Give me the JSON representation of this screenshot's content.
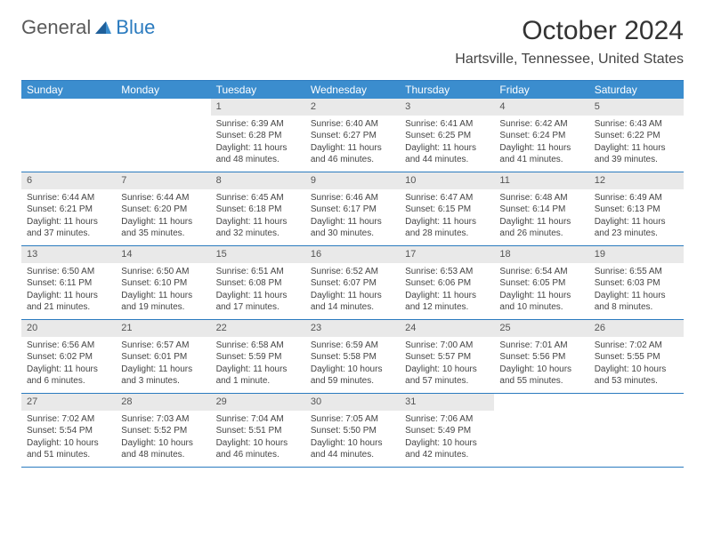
{
  "logo": {
    "general": "General",
    "blue": "Blue"
  },
  "title": "October 2024",
  "location": "Hartsville, Tennessee, United States",
  "colors": {
    "header_bg": "#3b8dce",
    "border": "#2b7bbf",
    "daynum_bg": "#e9e9e9",
    "text": "#333333"
  },
  "dow": [
    "Sunday",
    "Monday",
    "Tuesday",
    "Wednesday",
    "Thursday",
    "Friday",
    "Saturday"
  ],
  "weeks": [
    [
      {
        "n": "",
        "empty": true
      },
      {
        "n": "",
        "empty": true
      },
      {
        "n": "1",
        "sr": "Sunrise: 6:39 AM",
        "ss": "Sunset: 6:28 PM",
        "dl1": "Daylight: 11 hours",
        "dl2": "and 48 minutes."
      },
      {
        "n": "2",
        "sr": "Sunrise: 6:40 AM",
        "ss": "Sunset: 6:27 PM",
        "dl1": "Daylight: 11 hours",
        "dl2": "and 46 minutes."
      },
      {
        "n": "3",
        "sr": "Sunrise: 6:41 AM",
        "ss": "Sunset: 6:25 PM",
        "dl1": "Daylight: 11 hours",
        "dl2": "and 44 minutes."
      },
      {
        "n": "4",
        "sr": "Sunrise: 6:42 AM",
        "ss": "Sunset: 6:24 PM",
        "dl1": "Daylight: 11 hours",
        "dl2": "and 41 minutes."
      },
      {
        "n": "5",
        "sr": "Sunrise: 6:43 AM",
        "ss": "Sunset: 6:22 PM",
        "dl1": "Daylight: 11 hours",
        "dl2": "and 39 minutes."
      }
    ],
    [
      {
        "n": "6",
        "sr": "Sunrise: 6:44 AM",
        "ss": "Sunset: 6:21 PM",
        "dl1": "Daylight: 11 hours",
        "dl2": "and 37 minutes."
      },
      {
        "n": "7",
        "sr": "Sunrise: 6:44 AM",
        "ss": "Sunset: 6:20 PM",
        "dl1": "Daylight: 11 hours",
        "dl2": "and 35 minutes."
      },
      {
        "n": "8",
        "sr": "Sunrise: 6:45 AM",
        "ss": "Sunset: 6:18 PM",
        "dl1": "Daylight: 11 hours",
        "dl2": "and 32 minutes."
      },
      {
        "n": "9",
        "sr": "Sunrise: 6:46 AM",
        "ss": "Sunset: 6:17 PM",
        "dl1": "Daylight: 11 hours",
        "dl2": "and 30 minutes."
      },
      {
        "n": "10",
        "sr": "Sunrise: 6:47 AM",
        "ss": "Sunset: 6:15 PM",
        "dl1": "Daylight: 11 hours",
        "dl2": "and 28 minutes."
      },
      {
        "n": "11",
        "sr": "Sunrise: 6:48 AM",
        "ss": "Sunset: 6:14 PM",
        "dl1": "Daylight: 11 hours",
        "dl2": "and 26 minutes."
      },
      {
        "n": "12",
        "sr": "Sunrise: 6:49 AM",
        "ss": "Sunset: 6:13 PM",
        "dl1": "Daylight: 11 hours",
        "dl2": "and 23 minutes."
      }
    ],
    [
      {
        "n": "13",
        "sr": "Sunrise: 6:50 AM",
        "ss": "Sunset: 6:11 PM",
        "dl1": "Daylight: 11 hours",
        "dl2": "and 21 minutes."
      },
      {
        "n": "14",
        "sr": "Sunrise: 6:50 AM",
        "ss": "Sunset: 6:10 PM",
        "dl1": "Daylight: 11 hours",
        "dl2": "and 19 minutes."
      },
      {
        "n": "15",
        "sr": "Sunrise: 6:51 AM",
        "ss": "Sunset: 6:08 PM",
        "dl1": "Daylight: 11 hours",
        "dl2": "and 17 minutes."
      },
      {
        "n": "16",
        "sr": "Sunrise: 6:52 AM",
        "ss": "Sunset: 6:07 PM",
        "dl1": "Daylight: 11 hours",
        "dl2": "and 14 minutes."
      },
      {
        "n": "17",
        "sr": "Sunrise: 6:53 AM",
        "ss": "Sunset: 6:06 PM",
        "dl1": "Daylight: 11 hours",
        "dl2": "and 12 minutes."
      },
      {
        "n": "18",
        "sr": "Sunrise: 6:54 AM",
        "ss": "Sunset: 6:05 PM",
        "dl1": "Daylight: 11 hours",
        "dl2": "and 10 minutes."
      },
      {
        "n": "19",
        "sr": "Sunrise: 6:55 AM",
        "ss": "Sunset: 6:03 PM",
        "dl1": "Daylight: 11 hours",
        "dl2": "and 8 minutes."
      }
    ],
    [
      {
        "n": "20",
        "sr": "Sunrise: 6:56 AM",
        "ss": "Sunset: 6:02 PM",
        "dl1": "Daylight: 11 hours",
        "dl2": "and 6 minutes."
      },
      {
        "n": "21",
        "sr": "Sunrise: 6:57 AM",
        "ss": "Sunset: 6:01 PM",
        "dl1": "Daylight: 11 hours",
        "dl2": "and 3 minutes."
      },
      {
        "n": "22",
        "sr": "Sunrise: 6:58 AM",
        "ss": "Sunset: 5:59 PM",
        "dl1": "Daylight: 11 hours",
        "dl2": "and 1 minute."
      },
      {
        "n": "23",
        "sr": "Sunrise: 6:59 AM",
        "ss": "Sunset: 5:58 PM",
        "dl1": "Daylight: 10 hours",
        "dl2": "and 59 minutes."
      },
      {
        "n": "24",
        "sr": "Sunrise: 7:00 AM",
        "ss": "Sunset: 5:57 PM",
        "dl1": "Daylight: 10 hours",
        "dl2": "and 57 minutes."
      },
      {
        "n": "25",
        "sr": "Sunrise: 7:01 AM",
        "ss": "Sunset: 5:56 PM",
        "dl1": "Daylight: 10 hours",
        "dl2": "and 55 minutes."
      },
      {
        "n": "26",
        "sr": "Sunrise: 7:02 AM",
        "ss": "Sunset: 5:55 PM",
        "dl1": "Daylight: 10 hours",
        "dl2": "and 53 minutes."
      }
    ],
    [
      {
        "n": "27",
        "sr": "Sunrise: 7:02 AM",
        "ss": "Sunset: 5:54 PM",
        "dl1": "Daylight: 10 hours",
        "dl2": "and 51 minutes."
      },
      {
        "n": "28",
        "sr": "Sunrise: 7:03 AM",
        "ss": "Sunset: 5:52 PM",
        "dl1": "Daylight: 10 hours",
        "dl2": "and 48 minutes."
      },
      {
        "n": "29",
        "sr": "Sunrise: 7:04 AM",
        "ss": "Sunset: 5:51 PM",
        "dl1": "Daylight: 10 hours",
        "dl2": "and 46 minutes."
      },
      {
        "n": "30",
        "sr": "Sunrise: 7:05 AM",
        "ss": "Sunset: 5:50 PM",
        "dl1": "Daylight: 10 hours",
        "dl2": "and 44 minutes."
      },
      {
        "n": "31",
        "sr": "Sunrise: 7:06 AM",
        "ss": "Sunset: 5:49 PM",
        "dl1": "Daylight: 10 hours",
        "dl2": "and 42 minutes."
      },
      {
        "n": "",
        "empty": true
      },
      {
        "n": "",
        "empty": true
      }
    ]
  ]
}
